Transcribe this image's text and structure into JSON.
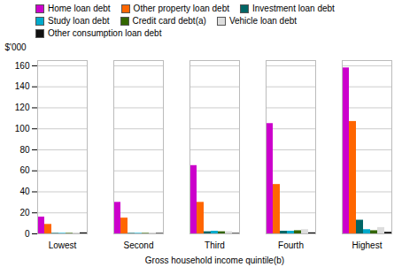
{
  "chart_data": {
    "type": "bar",
    "categories": [
      "Lowest",
      "Second",
      "Third",
      "Fourth",
      "Highest"
    ],
    "series": [
      {
        "name": "Home loan debt",
        "color": "#CC00CC",
        "values": [
          16,
          30,
          65,
          105,
          158
        ]
      },
      {
        "name": "Other property loan debt",
        "color": "#FF6600",
        "values": [
          9,
          15,
          30,
          47,
          107
        ]
      },
      {
        "name": "Investment loan debt",
        "color": "#006666",
        "values": [
          0.5,
          0.5,
          2,
          2.5,
          13
        ]
      },
      {
        "name": "Study loan debt",
        "color": "#00AACC",
        "values": [
          0.5,
          0.5,
          2.5,
          2.5,
          4
        ]
      },
      {
        "name": "Credit card debt(a)",
        "color": "#336600",
        "values": [
          0.5,
          0.5,
          2,
          3,
          3
        ]
      },
      {
        "name": "Vehicle loan debt",
        "color": "#DDDDDD",
        "values": [
          1,
          1,
          2,
          4,
          6
        ]
      },
      {
        "name": "Other consumption loan debt",
        "color": "#111111",
        "values": [
          1,
          0.5,
          0.5,
          1,
          1.5
        ]
      }
    ],
    "xlabel": "Gross household income quintile(b)",
    "ylabel": "$'000",
    "ylim": [
      0,
      165
    ],
    "yticks": [
      0,
      20,
      40,
      60,
      80,
      100,
      120,
      140,
      160
    ],
    "grid": true,
    "legend": "top"
  }
}
